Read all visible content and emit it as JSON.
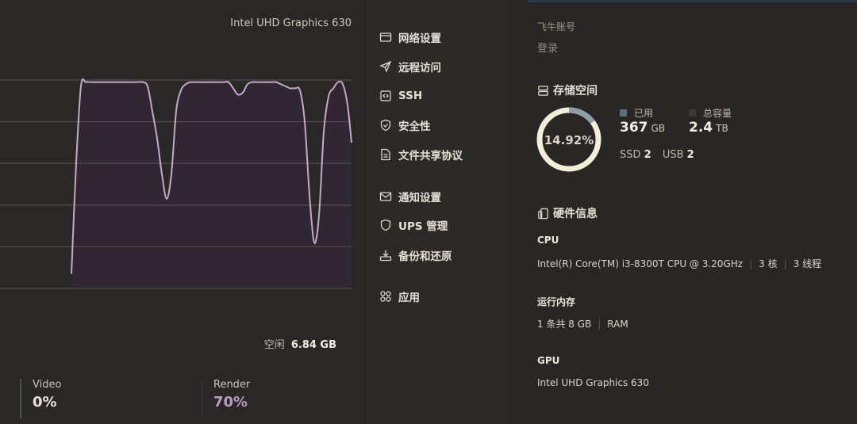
{
  "gpu_panel": {
    "gpu_name": "Intel UHD Graphics 630",
    "free_label": "空闲",
    "free_value": "6.84 GB",
    "video_label": "Video",
    "video_value": "0%",
    "render_label": "Render",
    "render_value": "70%",
    "line_color": "#c7a8cc"
  },
  "chart_data": {
    "type": "area",
    "ylim": [
      0,
      100
    ],
    "grid": true,
    "series": [
      {
        "values": [
          null,
          null,
          null,
          null,
          null,
          null,
          null,
          null,
          null,
          null,
          null,
          null,
          null,
          null,
          null,
          7,
          60,
          97,
          99,
          99,
          99,
          99,
          99,
          99,
          99,
          99,
          99,
          99,
          99,
          99,
          99,
          97,
          85,
          72,
          55,
          43,
          55,
          85,
          95,
          98,
          99,
          99,
          99,
          99,
          99,
          99,
          99,
          99,
          99,
          96,
          93,
          94,
          98,
          99,
          99,
          99,
          99,
          99,
          99,
          98,
          97,
          96,
          96,
          95,
          80,
          45,
          22,
          35,
          75,
          92,
          96,
          99,
          98,
          88,
          70
        ]
      }
    ]
  },
  "menu": {
    "items": [
      {
        "label": "网络设置",
        "icon": "network-icon"
      },
      {
        "label": "远程访问",
        "icon": "send-icon"
      },
      {
        "label": "SSH",
        "icon": "code-icon"
      },
      {
        "label": "安全性",
        "icon": "shield-check-icon"
      },
      {
        "label": "文件共享协议",
        "icon": "file-icon"
      },
      {
        "label": "通知设置",
        "icon": "mail-icon"
      },
      {
        "label": "UPS 管理",
        "icon": "shield-icon"
      },
      {
        "label": "备份和还原",
        "icon": "download-icon"
      },
      {
        "label": "应用",
        "icon": "apps-icon"
      }
    ]
  },
  "account": {
    "label": "飞牛账号",
    "login": "登录"
  },
  "storage": {
    "title": "存储空间",
    "percent": "14.92%",
    "used_fraction": 0.1492,
    "used_label": "已用",
    "used_value": "367",
    "used_unit": "GB",
    "total_label": "总容量",
    "total_value": "2.4",
    "total_unit": "TB",
    "ssd_label": "SSD",
    "ssd_count": "2",
    "usb_label": "USB",
    "usb_count": "2",
    "used_color": "#5d6f7c",
    "ring_color": "#f2efd8",
    "used_arc_color": "#8e9ea6"
  },
  "hardware": {
    "title": "硬件信息",
    "cpu_label": "CPU",
    "cpu_model": "Intel(R) Core(TM) i3-8300T CPU @ 3.20GHz",
    "cpu_cores": "3 核",
    "cpu_threads": "3 线程",
    "ram_label": "运行内存",
    "ram_value": "1 条共 8 GB",
    "ram_type": "RAM",
    "gpu_label": "GPU",
    "gpu_value": "Intel UHD Graphics 630"
  }
}
